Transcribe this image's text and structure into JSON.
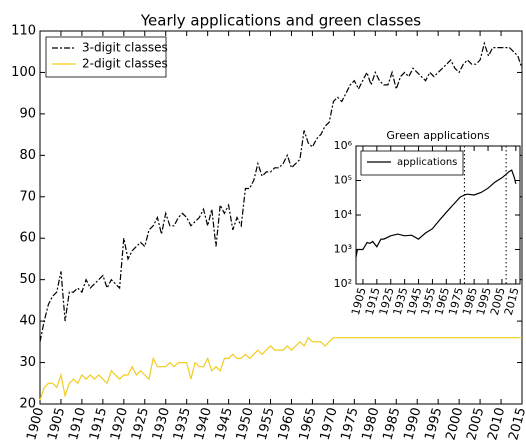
{
  "chart_data": [
    {
      "type": "line",
      "title": "Yearly applications and green classes",
      "x": [
        1900,
        1901,
        1902,
        1903,
        1904,
        1905,
        1906,
        1907,
        1908,
        1909,
        1910,
        1911,
        1912,
        1913,
        1914,
        1915,
        1916,
        1917,
        1918,
        1919,
        1920,
        1921,
        1922,
        1923,
        1924,
        1925,
        1926,
        1927,
        1928,
        1929,
        1930,
        1931,
        1932,
        1933,
        1934,
        1935,
        1936,
        1937,
        1938,
        1939,
        1940,
        1941,
        1942,
        1943,
        1944,
        1945,
        1946,
        1947,
        1948,
        1949,
        1950,
        1951,
        1952,
        1953,
        1954,
        1955,
        1956,
        1957,
        1958,
        1959,
        1960,
        1961,
        1962,
        1963,
        1964,
        1965,
        1966,
        1967,
        1968,
        1969,
        1970,
        1971,
        1972,
        1973,
        1974,
        1975,
        1976,
        1977,
        1978,
        1979,
        1980,
        1981,
        1982,
        1983,
        1984,
        1985,
        1986,
        1987,
        1988,
        1989,
        1990,
        1991,
        1992,
        1993,
        1994,
        1995,
        1996,
        1997,
        1998,
        1999,
        2000,
        2001,
        2002,
        2003,
        2004,
        2005,
        2006,
        2007,
        2008,
        2009,
        2010,
        2011,
        2012,
        2013,
        2014,
        2015
      ],
      "series": [
        {
          "name": "3-digit classes",
          "color": "#000000",
          "dash": true,
          "values": [
            35,
            40,
            44,
            46,
            47,
            52,
            40,
            47,
            47,
            48,
            47,
            50,
            48,
            49,
            50,
            51,
            48,
            50,
            49,
            48,
            60,
            55,
            57,
            58,
            59,
            58,
            62,
            63,
            65,
            61,
            66,
            63,
            63,
            65,
            66,
            65,
            63,
            64,
            65,
            67,
            63,
            67,
            58,
            68,
            66,
            68,
            62,
            65,
            63,
            72,
            72,
            74,
            78,
            75,
            76,
            76,
            77,
            77,
            78,
            80,
            77,
            78,
            79,
            86,
            83,
            82,
            84,
            85,
            87,
            88,
            93,
            94,
            93,
            95,
            97,
            98,
            96,
            98,
            100,
            97,
            100,
            98,
            97,
            97,
            100,
            96,
            99,
            100,
            99,
            101,
            100,
            99,
            98,
            100,
            99,
            100,
            101,
            102,
            103,
            101,
            100,
            102,
            103,
            102,
            102,
            103,
            107,
            104,
            106,
            106,
            106,
            106,
            106,
            105,
            104,
            101
          ]
        },
        {
          "name": "2-digit classes",
          "color": "#f2cc1f",
          "dash": false,
          "values": [
            21,
            24,
            25,
            25,
            24,
            27,
            22,
            25,
            26,
            25,
            27,
            26,
            27,
            26,
            27,
            26,
            25,
            28,
            27,
            26,
            27,
            27,
            29,
            27,
            28,
            27,
            26,
            31,
            29,
            29,
            29,
            30,
            29,
            30,
            30,
            30,
            26,
            30,
            29,
            29,
            31,
            28,
            29,
            28,
            31,
            31,
            32,
            31,
            31,
            32,
            31,
            32,
            33,
            32,
            33,
            34,
            33,
            33,
            33,
            34,
            33,
            34,
            35,
            34,
            36,
            35,
            35,
            35,
            34,
            35,
            36,
            36,
            36,
            36,
            36,
            36,
            36,
            36,
            36,
            36,
            36,
            36,
            36,
            36,
            36,
            36,
            36,
            36,
            36,
            36,
            36,
            36,
            36,
            36,
            36,
            36,
            36,
            36,
            36,
            36,
            36,
            36,
            36,
            36,
            36,
            36,
            36,
            36,
            36,
            36,
            36,
            36,
            36,
            36,
            36,
            36
          ]
        }
      ],
      "xlim": [
        1900,
        2015
      ],
      "xticks": [
        1900,
        1905,
        1910,
        1915,
        1920,
        1925,
        1930,
        1935,
        1940,
        1945,
        1950,
        1955,
        1960,
        1965,
        1970,
        1975,
        1980,
        1985,
        1990,
        1995,
        2000,
        2005,
        2010,
        2015
      ],
      "ylim": [
        20,
        110
      ],
      "yticks": [
        20,
        30,
        40,
        50,
        60,
        70,
        80,
        90,
        100,
        110
      ],
      "legend": "upper left"
    },
    {
      "type": "line",
      "title": "Green applications",
      "log_y": true,
      "x": [
        1900,
        1901,
        1905,
        1908,
        1910,
        1912,
        1915,
        1918,
        1920,
        1925,
        1930,
        1935,
        1940,
        1945,
        1950,
        1955,
        1960,
        1965,
        1970,
        1975,
        1978,
        1980,
        1985,
        1990,
        1995,
        2000,
        2005,
        2008,
        2010,
        2012,
        2014,
        2015
      ],
      "series": [
        {
          "name": "applications",
          "color": "#000000",
          "values": [
            600,
            1000,
            1000,
            1600,
            1500,
            1700,
            1200,
            2000,
            2000,
            2500,
            2800,
            2500,
            2600,
            2000,
            3000,
            4000,
            7000,
            12000,
            20000,
            33000,
            38000,
            40000,
            38000,
            45000,
            60000,
            90000,
            120000,
            150000,
            180000,
            200000,
            120000,
            80000
          ]
        }
      ],
      "vlines": [
        1978,
        2008
      ],
      "xlim": [
        1900,
        2018
      ],
      "xticks": [
        1905,
        1915,
        1925,
        1935,
        1945,
        1955,
        1965,
        1975,
        1985,
        1995,
        2005,
        2015
      ],
      "ylim": [
        100,
        1000000
      ],
      "yticks": [
        {
          "value": 100,
          "label": "10²"
        },
        {
          "value": 1000,
          "label": "10³"
        },
        {
          "value": 10000,
          "label": "10⁴"
        },
        {
          "value": 100000,
          "label": "10⁵"
        },
        {
          "value": 1000000,
          "label": "10⁶"
        }
      ],
      "legend": "upper left"
    }
  ]
}
